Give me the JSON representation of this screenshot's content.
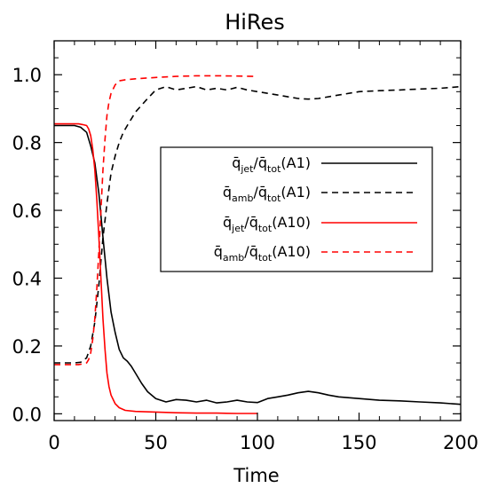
{
  "chart_data": {
    "type": "line",
    "title": "HiRes",
    "xlabel": "Time",
    "ylabel": "",
    "xlim": [
      0,
      200
    ],
    "ylim": [
      -0.02,
      1.1
    ],
    "xticks": [
      0,
      50,
      100,
      150,
      200
    ],
    "xtick_labels": [
      "0",
      "50",
      "100",
      "150",
      "200"
    ],
    "yticks": [
      0.0,
      0.2,
      0.4,
      0.6,
      0.8,
      1.0
    ],
    "ytick_labels": [
      "0.0",
      "0.2",
      "0.4",
      "0.6",
      "0.8",
      "1.0"
    ],
    "grid": false,
    "legend_position": "center-right",
    "series": [
      {
        "name_parts": [
          "q̄",
          "jet",
          "/q̄",
          "tot",
          "(A1)"
        ],
        "color": "#000000",
        "dash": "solid",
        "x": [
          0,
          5,
          10,
          13,
          16,
          18,
          20,
          22,
          24,
          26,
          28,
          30,
          32,
          34,
          36,
          38,
          40,
          43,
          46,
          50,
          55,
          60,
          65,
          70,
          75,
          80,
          85,
          90,
          95,
          100,
          105,
          110,
          115,
          120,
          125,
          130,
          135,
          140,
          150,
          160,
          170,
          180,
          190,
          200
        ],
        "y": [
          0.85,
          0.85,
          0.85,
          0.845,
          0.83,
          0.79,
          0.74,
          0.65,
          0.52,
          0.4,
          0.3,
          0.24,
          0.19,
          0.165,
          0.155,
          0.14,
          0.12,
          0.09,
          0.065,
          0.045,
          0.035,
          0.042,
          0.04,
          0.035,
          0.04,
          0.032,
          0.035,
          0.04,
          0.035,
          0.033,
          0.045,
          0.05,
          0.055,
          0.062,
          0.066,
          0.062,
          0.055,
          0.05,
          0.045,
          0.04,
          0.038,
          0.035,
          0.032,
          0.028
        ]
      },
      {
        "name_parts": [
          "q̄",
          "amb",
          "/q̄",
          "tot",
          "(A1)"
        ],
        "color": "#000000",
        "dash": "dashed",
        "x": [
          0,
          5,
          10,
          13,
          16,
          18,
          20,
          22,
          24,
          26,
          28,
          30,
          32,
          34,
          36,
          38,
          40,
          43,
          46,
          50,
          55,
          60,
          65,
          70,
          75,
          80,
          85,
          90,
          95,
          100,
          105,
          110,
          115,
          120,
          125,
          130,
          140,
          150,
          160,
          170,
          180,
          190,
          200
        ],
        "y": [
          0.15,
          0.15,
          0.15,
          0.152,
          0.165,
          0.2,
          0.27,
          0.38,
          0.52,
          0.62,
          0.71,
          0.76,
          0.8,
          0.83,
          0.85,
          0.87,
          0.89,
          0.91,
          0.93,
          0.955,
          0.965,
          0.955,
          0.96,
          0.965,
          0.955,
          0.96,
          0.955,
          0.963,
          0.955,
          0.95,
          0.945,
          0.94,
          0.935,
          0.93,
          0.928,
          0.93,
          0.94,
          0.95,
          0.953,
          0.955,
          0.958,
          0.96,
          0.965
        ]
      },
      {
        "name_parts": [
          "q̄",
          "jet",
          "/q̄",
          "tot",
          "(A10)"
        ],
        "color": "#ff0000",
        "dash": "solid",
        "x": [
          0,
          5,
          10,
          12,
          14,
          16,
          17,
          18,
          19,
          20,
          21,
          22,
          23,
          24,
          25,
          26,
          27,
          28,
          30,
          32,
          35,
          40,
          50,
          60,
          70,
          80,
          90,
          100
        ],
        "y": [
          0.855,
          0.855,
          0.855,
          0.855,
          0.853,
          0.85,
          0.84,
          0.82,
          0.78,
          0.72,
          0.63,
          0.52,
          0.4,
          0.28,
          0.19,
          0.12,
          0.08,
          0.055,
          0.03,
          0.018,
          0.01,
          0.007,
          0.005,
          0.003,
          0.002,
          0.002,
          0.001,
          0.001
        ]
      },
      {
        "name_parts": [
          "q̄",
          "amb",
          "/q̄",
          "tot",
          "(A10)"
        ],
        "color": "#ff0000",
        "dash": "dashed",
        "x": [
          0,
          5,
          10,
          12,
          14,
          16,
          17,
          18,
          19,
          20,
          21,
          22,
          23,
          24,
          25,
          26,
          27,
          28,
          30,
          32,
          35,
          40,
          50,
          60,
          70,
          80,
          90,
          100
        ],
        "y": [
          0.145,
          0.145,
          0.145,
          0.145,
          0.147,
          0.15,
          0.16,
          0.18,
          0.22,
          0.28,
          0.37,
          0.48,
          0.6,
          0.72,
          0.81,
          0.88,
          0.92,
          0.945,
          0.97,
          0.982,
          0.985,
          0.988,
          0.992,
          0.995,
          0.997,
          0.997,
          0.996,
          0.995
        ]
      }
    ]
  }
}
